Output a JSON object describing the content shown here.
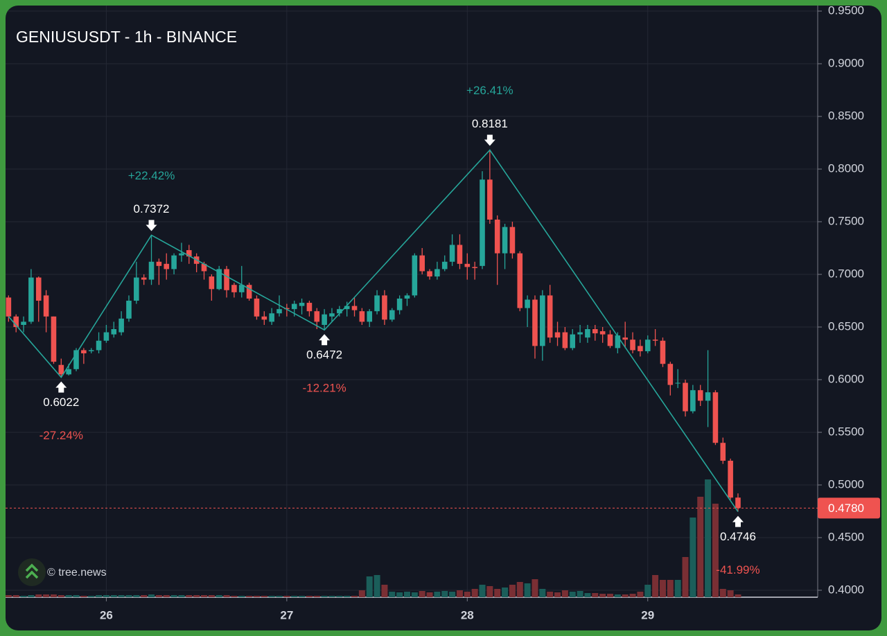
{
  "chart_data": {
    "type": "candlestick",
    "title": "GENIUSUSDT - 1h - BINANCE",
    "watermark": "© tree.news",
    "up_color": "#26a69a",
    "down_color": "#ef5350",
    "grid": true,
    "xlim": [
      -0.4,
      107.6
    ],
    "xticks": [
      {
        "value": 13,
        "label": "26"
      },
      {
        "value": 37,
        "label": "27"
      },
      {
        "value": 61,
        "label": "28"
      },
      {
        "value": 85,
        "label": "29"
      }
    ],
    "ylim": [
      0.3934,
      0.9553
    ],
    "yticks": [
      {
        "value": 0.95,
        "label": "0.9500"
      },
      {
        "value": 0.9,
        "label": "0.9000"
      },
      {
        "value": 0.85,
        "label": "0.8500"
      },
      {
        "value": 0.8,
        "label": "0.8000"
      },
      {
        "value": 0.75,
        "label": "0.7500"
      },
      {
        "value": 0.7,
        "label": "0.7000"
      },
      {
        "value": 0.65,
        "label": "0.6500"
      },
      {
        "value": 0.6,
        "label": "0.6000"
      },
      {
        "value": 0.55,
        "label": "0.5500"
      },
      {
        "value": 0.5,
        "label": "0.5000"
      },
      {
        "value": 0.45,
        "label": "0.4500"
      },
      {
        "value": 0.4,
        "label": "0.4000"
      }
    ],
    "last_price": {
      "value": 0.478,
      "label": "0.4780"
    },
    "ohlc": [
      [
        0.678,
        0.68,
        0.655,
        0.66
      ],
      [
        0.66,
        0.662,
        0.645,
        0.65
      ],
      [
        0.652,
        0.66,
        0.645,
        0.655
      ],
      [
        0.655,
        0.705,
        0.653,
        0.697
      ],
      [
        0.697,
        0.698,
        0.655,
        0.675
      ],
      [
        0.68,
        0.685,
        0.645,
        0.66
      ],
      [
        0.66,
        0.66,
        0.615,
        0.617
      ],
      [
        0.614,
        0.62,
        0.6022,
        0.605
      ],
      [
        0.605,
        0.615,
        0.604,
        0.61
      ],
      [
        0.61,
        0.63,
        0.608,
        0.628
      ],
      [
        0.628,
        0.63,
        0.615,
        0.625
      ],
      [
        0.627,
        0.63,
        0.625,
        0.628
      ],
      [
        0.628,
        0.645,
        0.625,
        0.637
      ],
      [
        0.637,
        0.652,
        0.635,
        0.645
      ],
      [
        0.643,
        0.655,
        0.64,
        0.648
      ],
      [
        0.645,
        0.665,
        0.642,
        0.658
      ],
      [
        0.658,
        0.68,
        0.655,
        0.675
      ],
      [
        0.675,
        0.712,
        0.672,
        0.697
      ],
      [
        0.697,
        0.7,
        0.69,
        0.695
      ],
      [
        0.695,
        0.7372,
        0.69,
        0.712
      ],
      [
        0.712,
        0.715,
        0.69,
        0.708
      ],
      [
        0.71,
        0.72,
        0.695,
        0.705
      ],
      [
        0.705,
        0.72,
        0.7,
        0.718
      ],
      [
        0.718,
        0.73,
        0.712,
        0.72
      ],
      [
        0.723,
        0.728,
        0.71,
        0.717
      ],
      [
        0.717,
        0.72,
        0.702,
        0.71
      ],
      [
        0.71,
        0.712,
        0.695,
        0.703
      ],
      [
        0.698,
        0.7,
        0.675,
        0.686
      ],
      [
        0.686,
        0.708,
        0.685,
        0.705
      ],
      [
        0.705,
        0.708,
        0.678,
        0.685
      ],
      [
        0.69,
        0.692,
        0.678,
        0.683
      ],
      [
        0.683,
        0.708,
        0.678,
        0.69
      ],
      [
        0.69,
        0.692,
        0.675,
        0.677
      ],
      [
        0.677,
        0.68,
        0.657,
        0.66
      ],
      [
        0.66,
        0.665,
        0.652,
        0.657
      ],
      [
        0.655,
        0.668,
        0.652,
        0.663
      ],
      [
        0.663,
        0.68,
        0.66,
        0.667
      ],
      [
        0.668,
        0.672,
        0.66,
        0.667
      ],
      [
        0.667,
        0.675,
        0.66,
        0.672
      ],
      [
        0.67,
        0.677,
        0.662,
        0.673
      ],
      [
        0.673,
        0.675,
        0.66,
        0.665
      ],
      [
        0.665,
        0.668,
        0.648,
        0.655
      ],
      [
        0.652,
        0.667,
        0.6472,
        0.662
      ],
      [
        0.66,
        0.668,
        0.655,
        0.663
      ],
      [
        0.663,
        0.67,
        0.66,
        0.667
      ],
      [
        0.667,
        0.674,
        0.66,
        0.67
      ],
      [
        0.67,
        0.678,
        0.66,
        0.666
      ],
      [
        0.665,
        0.668,
        0.652,
        0.655
      ],
      [
        0.655,
        0.667,
        0.65,
        0.665
      ],
      [
        0.665,
        0.685,
        0.662,
        0.68
      ],
      [
        0.68,
        0.685,
        0.652,
        0.657
      ],
      [
        0.657,
        0.668,
        0.655,
        0.666
      ],
      [
        0.666,
        0.68,
        0.662,
        0.677
      ],
      [
        0.677,
        0.682,
        0.67,
        0.68
      ],
      [
        0.68,
        0.72,
        0.678,
        0.718
      ],
      [
        0.718,
        0.725,
        0.7,
        0.703
      ],
      [
        0.703,
        0.705,
        0.695,
        0.698
      ],
      [
        0.698,
        0.712,
        0.695,
        0.705
      ],
      [
        0.705,
        0.718,
        0.703,
        0.712
      ],
      [
        0.712,
        0.738,
        0.708,
        0.728
      ],
      [
        0.728,
        0.738,
        0.705,
        0.71
      ],
      [
        0.71,
        0.72,
        0.695,
        0.707
      ],
      [
        0.707,
        0.712,
        0.695,
        0.706
      ],
      [
        0.708,
        0.798,
        0.705,
        0.79
      ],
      [
        0.79,
        0.8181,
        0.748,
        0.752
      ],
      [
        0.752,
        0.756,
        0.69,
        0.72
      ],
      [
        0.72,
        0.748,
        0.705,
        0.745
      ],
      [
        0.745,
        0.75,
        0.715,
        0.72
      ],
      [
        0.72,
        0.722,
        0.665,
        0.668
      ],
      [
        0.668,
        0.68,
        0.65,
        0.676
      ],
      [
        0.676,
        0.68,
        0.62,
        0.632
      ],
      [
        0.632,
        0.685,
        0.618,
        0.68
      ],
      [
        0.68,
        0.69,
        0.635,
        0.64
      ],
      [
        0.645,
        0.655,
        0.632,
        0.64
      ],
      [
        0.645,
        0.65,
        0.628,
        0.63
      ],
      [
        0.63,
        0.648,
        0.628,
        0.643
      ],
      [
        0.643,
        0.652,
        0.635,
        0.645
      ],
      [
        0.64,
        0.652,
        0.635,
        0.648
      ],
      [
        0.648,
        0.652,
        0.637,
        0.644
      ],
      [
        0.646,
        0.65,
        0.635,
        0.643
      ],
      [
        0.643,
        0.647,
        0.63,
        0.632
      ],
      [
        0.63,
        0.645,
        0.625,
        0.642
      ],
      [
        0.64,
        0.655,
        0.63,
        0.638
      ],
      [
        0.638,
        0.645,
        0.625,
        0.628
      ],
      [
        0.632,
        0.638,
        0.622,
        0.627
      ],
      [
        0.627,
        0.642,
        0.625,
        0.638
      ],
      [
        0.638,
        0.648,
        0.632,
        0.637
      ],
      [
        0.637,
        0.64,
        0.612,
        0.615
      ],
      [
        0.615,
        0.617,
        0.585,
        0.595
      ],
      [
        0.597,
        0.61,
        0.592,
        0.597
      ],
      [
        0.597,
        0.6,
        0.565,
        0.57
      ],
      [
        0.57,
        0.595,
        0.568,
        0.59
      ],
      [
        0.59,
        0.595,
        0.575,
        0.58
      ],
      [
        0.58,
        0.628,
        0.555,
        0.588
      ],
      [
        0.588,
        0.59,
        0.538,
        0.54
      ],
      [
        0.54,
        0.545,
        0.52,
        0.523
      ],
      [
        0.523,
        0.525,
        0.486,
        0.488
      ],
      [
        0.488,
        0.492,
        0.4746,
        0.478
      ]
    ],
    "volume": [
      3,
      3,
      2,
      3,
      4,
      4,
      4,
      3,
      3,
      3,
      2,
      2,
      3,
      3,
      3,
      3,
      3,
      3,
      3,
      4,
      3,
      3,
      3,
      3,
      3,
      3,
      3,
      3,
      3,
      3,
      2,
      2,
      2,
      2,
      2,
      2,
      2,
      2,
      2,
      2,
      2,
      2,
      2,
      2,
      2,
      2,
      2,
      10,
      30,
      32,
      18,
      8,
      7,
      8,
      7,
      9,
      7,
      8,
      9,
      8,
      10,
      8,
      12,
      18,
      16,
      12,
      14,
      18,
      22,
      20,
      26,
      12,
      8,
      7,
      10,
      8,
      9,
      6,
      6,
      5,
      5,
      4,
      4,
      5,
      8,
      18,
      32,
      25,
      25,
      25,
      58,
      115,
      145,
      170,
      135,
      12,
      10,
      4
    ],
    "zigzag": [
      {
        "index": 0,
        "price": 0.66
      },
      {
        "index": 7,
        "price": 0.6022,
        "change": "-27.24%"
      },
      {
        "index": 19,
        "price": 0.7372,
        "change": "+22.42%"
      },
      {
        "index": 42,
        "price": 0.6472,
        "change": "-12.21%"
      },
      {
        "index": 64,
        "price": 0.8181,
        "change": "+26.41%"
      },
      {
        "index": 97,
        "price": 0.4746,
        "change": "-41.99%"
      }
    ]
  }
}
